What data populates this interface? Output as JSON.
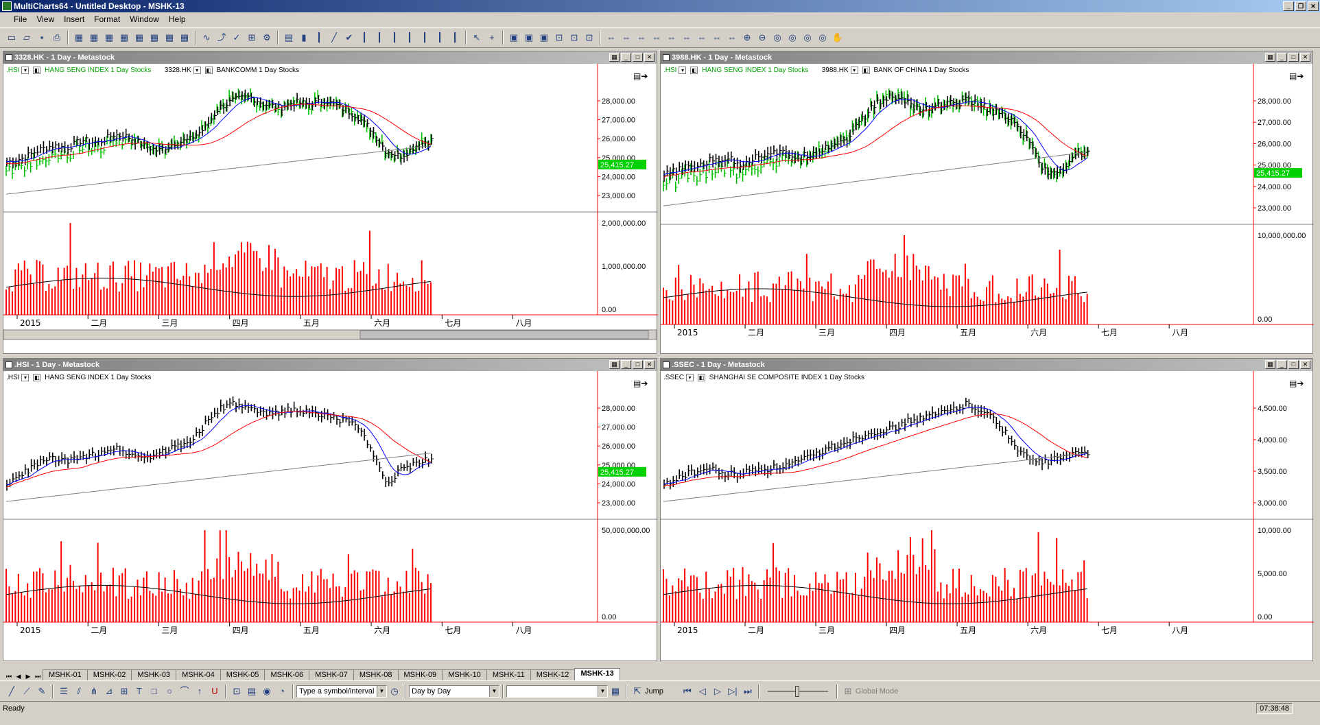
{
  "window": {
    "title": "MultiCharts64 - Untitled Desktop - MSHK-13",
    "controls": {
      "minimize": "_",
      "restore": "❐",
      "close": "✕"
    }
  },
  "menu": [
    "File",
    "View",
    "Insert",
    "Format",
    "Window",
    "Help"
  ],
  "toolbar_icons": [
    "new-icon",
    "open-icon",
    "save-icon",
    "print-icon",
    "chart-icon",
    "chart-icon",
    "chart-icon",
    "chart-icon",
    "chart-icon",
    "chart-icon",
    "chart-icon",
    "chart-icon",
    "indicator-icon",
    "signal-icon",
    "strategy-icon",
    "study-icon",
    "settings-icon",
    "data-icon",
    "candle-icon",
    "bar-icon",
    "line-icon",
    "check-icon",
    "bar-icon",
    "bar-icon",
    "bar-icon",
    "bar-icon",
    "bar-icon",
    "bar-icon",
    "bar-icon",
    "pointer-icon",
    "crosshair-icon",
    "window-icon",
    "window-icon",
    "window-icon",
    "layout-icon",
    "layout-icon",
    "layout-icon",
    "nav-icon",
    "nav-icon",
    "nav-icon",
    "nav-icon",
    "nav-icon",
    "nav-icon",
    "nav-icon",
    "nav-icon",
    "nav-icon",
    "zoom-in-icon",
    "zoom-out-icon",
    "zoom-icon",
    "zoom-icon",
    "zoom-icon",
    "zoom-icon",
    "hand-icon"
  ],
  "icons": {
    "new-icon": "▭",
    "open-icon": "▱",
    "save-icon": "▪",
    "print-icon": "⎙",
    "chart-icon": "▦",
    "indicator-icon": "∿",
    "signal-icon": "⤴",
    "strategy-icon": "✓",
    "study-icon": "⊞",
    "settings-icon": "⚙",
    "data-icon": "▤",
    "candle-icon": "▮",
    "bar-icon": "┃",
    "line-icon": "╱",
    "check-icon": "✔",
    "pointer-icon": "↖",
    "crosshair-icon": "+",
    "window-icon": "▣",
    "layout-icon": "⊡",
    "nav-icon": "⇔",
    "zoom-in-icon": "⊕",
    "zoom-out-icon": "⊖",
    "zoom-icon": "◎",
    "hand-icon": "✋"
  },
  "colors": {
    "up": "#00c000",
    "down": "#000000",
    "ma_fast": "#0000ff",
    "ma_mid": "#ff0000",
    "ma_slow": "#808080",
    "volume": "#ff0000",
    "axis": "#ff0000",
    "last_price_bg": "#00d000"
  },
  "panels": [
    {
      "title": "3328.HK - 1 Day - Metastock",
      "legend": [
        {
          "symbol": ".HSI",
          "desc": "HANG SENG INDEX  1 Day  Stocks",
          "color": "green"
        },
        {
          "symbol": "3328.HK",
          "desc": "BANKCOMM  1 Day  Stocks",
          "color": "black"
        }
      ],
      "price_labels": [
        "28,000.00",
        "27,000.00",
        "26,000.00",
        "25,000.00",
        "24,000.00",
        "23,000.00"
      ],
      "last_price": "25,415.27",
      "volume_labels": [
        "2,000,000.00",
        "1,000,000.00",
        "0.00"
      ],
      "months": [
        "2015",
        "二月",
        "三月",
        "四月",
        "五月",
        "六月",
        "七月",
        "八月"
      ]
    },
    {
      "title": "3988.HK - 1 Day - Metastock",
      "legend": [
        {
          "symbol": ".HSI",
          "desc": "HANG SENG INDEX  1 Day  Stocks",
          "color": "green"
        },
        {
          "symbol": "3988.HK",
          "desc": "BANK OF CHINA  1 Day  Stocks",
          "color": "black"
        }
      ],
      "price_labels": [
        "28,000.00",
        "27,000.00",
        "26,000.00",
        "25,000.00",
        "24,000.00",
        "23,000.00"
      ],
      "last_price": "25,415.27",
      "volume_labels": [
        "10,000,000.00",
        "0.00"
      ],
      "months": [
        "2015",
        "二月",
        "三月",
        "四月",
        "五月",
        "六月",
        "七月",
        "八月"
      ]
    },
    {
      "title": ".HSI - 1 Day - Metastock",
      "legend": [
        {
          "symbol": ".HSI",
          "desc": "HANG SENG INDEX  1 Day  Stocks",
          "color": "black"
        }
      ],
      "price_labels": [
        "28,000.00",
        "27,000.00",
        "26,000.00",
        "25,000.00",
        "24,000.00",
        "23,000.00"
      ],
      "last_price": "25,415.27",
      "volume_labels": [
        "50,000,000.00",
        "0.00"
      ],
      "months": [
        "2015",
        "二月",
        "三月",
        "四月",
        "五月",
        "六月",
        "七月",
        "八月"
      ]
    },
    {
      "title": ".SSEC - 1 Day - Metastock",
      "legend": [
        {
          "symbol": ".SSEC",
          "desc": "SHANGHAI SE COMPOSITE INDEX  1 Day  Stocks",
          "color": "black"
        }
      ],
      "price_labels": [
        "4,500.00",
        "4,000.00",
        "3,500.00",
        "3,000.00"
      ],
      "last_price": "",
      "volume_labels": [
        "10,000.00",
        "5,000.00",
        "0.00"
      ],
      "months": [
        "2015",
        "二月",
        "三月",
        "四月",
        "五月",
        "六月",
        "七月",
        "八月"
      ]
    }
  ],
  "tabs": [
    "MSHK-01",
    "MSHK-02",
    "MSHK-03",
    "MSHK-04",
    "MSHK-05",
    "MSHK-06",
    "MSHK-07",
    "MSHK-08",
    "MSHK-09",
    "MSHK-10",
    "MSHK-11",
    "MSHK-12",
    "MSHK-13"
  ],
  "active_tab": "MSHK-13",
  "drawbar": {
    "symbol_placeholder": "Type a symbol/interval",
    "resolution": "Day by Day",
    "jump": "Jump",
    "global_mode": "Global Mode"
  },
  "status": {
    "text": "Ready",
    "time": "07:38:48"
  }
}
